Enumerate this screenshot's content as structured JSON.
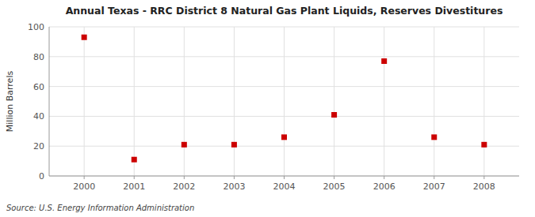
{
  "chart_data": {
    "type": "scatter",
    "title": "Annual Texas - RRC District 8 Natural Gas Plant Liquids, Reserves Divestitures",
    "ylabel": "Million Barrels",
    "annotations": [
      "Source: U.S. Energy Information Administration"
    ],
    "x": [
      2000,
      2001,
      2002,
      2003,
      2004,
      2005,
      2006,
      2007,
      2008
    ],
    "values": [
      93,
      11,
      21,
      21,
      26,
      41,
      77,
      26,
      21
    ],
    "color": "#cc0000",
    "marker": "square",
    "xlim": [
      1999.3,
      2008.7
    ],
    "xticks": [
      2000,
      2001,
      2002,
      2003,
      2004,
      2005,
      2006,
      2007,
      2008
    ],
    "ylim": [
      0,
      100
    ],
    "yticks": [
      0,
      20,
      40,
      60,
      80,
      100
    ],
    "grid": true
  }
}
